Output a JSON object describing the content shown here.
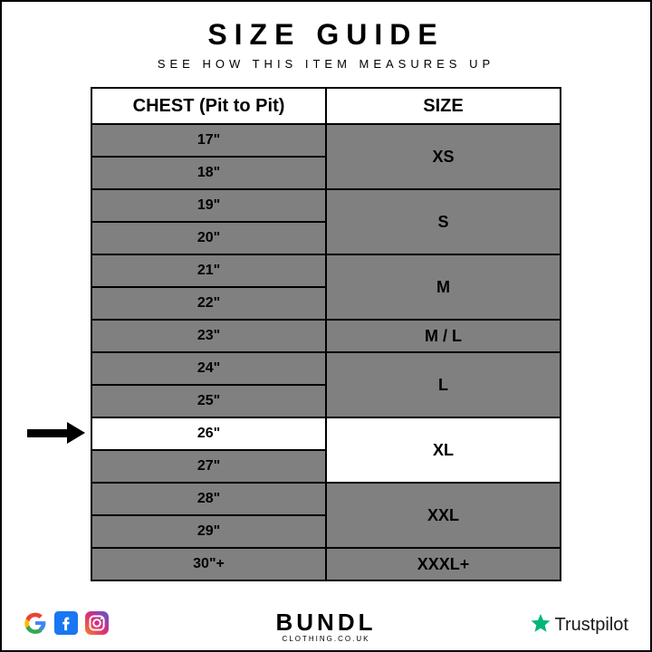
{
  "title": "SIZE GUIDE",
  "subtitle": "SEE HOW THIS ITEM MEASURES UP",
  "table": {
    "headers": {
      "chest": "CHEST (Pit to Pit)",
      "size": "SIZE"
    },
    "cell_color": "#808080",
    "highlight_color": "#ffffff",
    "border_color": "#000000",
    "chest_fontsize": 16,
    "size_fontsize": 18,
    "header_fontsize": 20,
    "highlighted_chest": "26\"",
    "rows": [
      {
        "chest": "17\"",
        "size": "XS",
        "rowspan": 2
      },
      {
        "chest": "18\""
      },
      {
        "chest": "19\"",
        "size": "S",
        "rowspan": 2
      },
      {
        "chest": "20\""
      },
      {
        "chest": "21\"",
        "size": "M",
        "rowspan": 2
      },
      {
        "chest": "22\""
      },
      {
        "chest": "23\"",
        "size": "M / L",
        "rowspan": 1
      },
      {
        "chest": "24\"",
        "size": "L",
        "rowspan": 2
      },
      {
        "chest": "25\""
      },
      {
        "chest": "26\"",
        "size": "XL",
        "rowspan": 2,
        "highlight": true
      },
      {
        "chest": "27\""
      },
      {
        "chest": "28\"",
        "size": "XXL",
        "rowspan": 2
      },
      {
        "chest": "29\""
      },
      {
        "chest": "30\"+",
        "size": "XXXL+",
        "rowspan": 1
      }
    ]
  },
  "brand": {
    "name": "BUNDL",
    "sub": "CLOTHING.CO.UK"
  },
  "trust": {
    "label": "Trustpilot",
    "star_color": "#00b67a"
  },
  "social_icons": [
    "google",
    "facebook",
    "instagram"
  ],
  "colors": {
    "google_blue": "#4285f4",
    "google_red": "#ea4335",
    "google_yellow": "#fbbc05",
    "google_green": "#34a853",
    "facebook": "#1877f2",
    "instagram_a": "#f58529",
    "instagram_b": "#dd2a7b",
    "instagram_c": "#515bd4"
  }
}
